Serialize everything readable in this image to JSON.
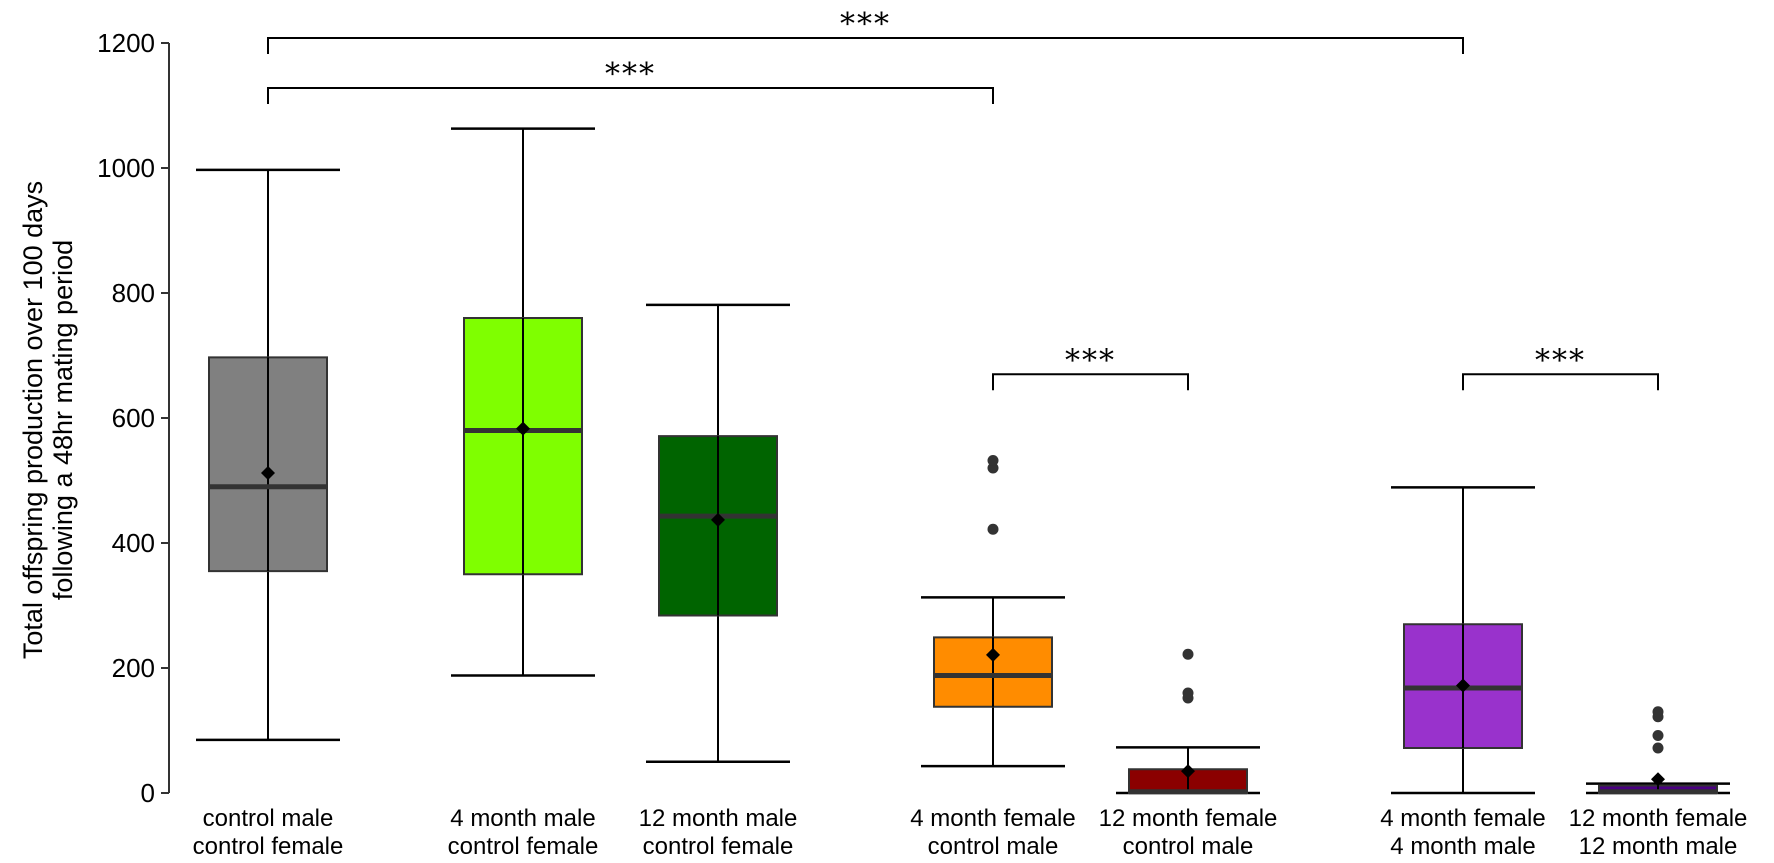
{
  "chart_data": {
    "type": "boxplot",
    "ylabel_lines": [
      "Total offspring production over 100 days",
      "following a 48hr mating period"
    ],
    "ylim": [
      0,
      1200
    ],
    "yticks": [
      0,
      200,
      400,
      600,
      800,
      1000,
      1200
    ],
    "grid": false,
    "groups": [
      {
        "label_lines": [
          "control male",
          "control female"
        ],
        "color": "#808080",
        "whisker_low": 85,
        "q1": 355,
        "median": 490,
        "q3": 697,
        "whisker_high": 997,
        "mean": 512,
        "outliers": []
      },
      {
        "label_lines": [
          "4 month male",
          "control female"
        ],
        "color": "#7fff00",
        "whisker_low": 188,
        "q1": 350,
        "median": 580,
        "q3": 760,
        "whisker_high": 1063,
        "mean": 583,
        "outliers": []
      },
      {
        "label_lines": [
          "12 month male",
          "control female"
        ],
        "color": "#006400",
        "whisker_low": 50,
        "q1": 284,
        "median": 443,
        "q3": 571,
        "whisker_high": 781,
        "mean": 437,
        "outliers": []
      },
      {
        "label_lines": [
          "4 month female",
          "control male"
        ],
        "color": "#ff8c00",
        "whisker_low": 43,
        "q1": 138,
        "median": 188,
        "q3": 249,
        "whisker_high": 313,
        "mean": 221,
        "outliers": [
          422,
          520,
          532
        ]
      },
      {
        "label_lines": [
          "12 month female",
          "control male"
        ],
        "color": "#8b0000",
        "whisker_low": 0,
        "q1": 0,
        "median": 2,
        "q3": 38,
        "whisker_high": 73,
        "mean": 35,
        "outliers": [
          152,
          160,
          222
        ]
      },
      {
        "label_lines": [
          "4 month female",
          "4 month male"
        ],
        "color": "#9932cc",
        "whisker_low": 0,
        "q1": 72,
        "median": 168,
        "q3": 270,
        "whisker_high": 489,
        "mean": 172,
        "outliers": []
      },
      {
        "label_lines": [
          "12 month female",
          "12 month male"
        ],
        "color": "#4b0082",
        "whisker_low": 0,
        "q1": 0,
        "median": 2,
        "q3": 12,
        "whisker_high": 15,
        "mean": 22,
        "outliers": [
          72,
          92,
          122,
          130
        ]
      }
    ],
    "significance": [
      {
        "from": 0,
        "to": 5,
        "y": 1208,
        "label": "***"
      },
      {
        "from": 0,
        "to": 3,
        "y": 1128,
        "label": "***"
      },
      {
        "from": 3,
        "to": 4,
        "y": 670,
        "label": "***"
      },
      {
        "from": 5,
        "to": 6,
        "y": 670,
        "label": "***"
      }
    ]
  }
}
